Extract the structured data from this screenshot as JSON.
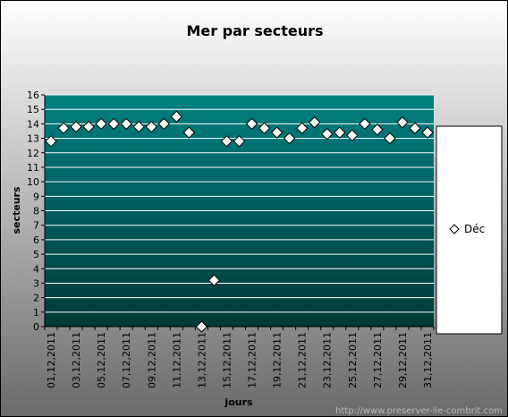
{
  "chart_data": {
    "type": "scatter",
    "title": "Mer par secteurs",
    "xlabel": "jours",
    "ylabel": "secteurs",
    "ylim": [
      0,
      16
    ],
    "yticks": [
      "0",
      "1",
      "2",
      "3",
      "4",
      "5",
      "6",
      "7",
      "8",
      "9",
      "10",
      "11",
      "12",
      "13",
      "14",
      "15",
      "16"
    ],
    "x_tick_labels": [
      "01,12,2011",
      "03,12,2011",
      "05,12,2011",
      "07,12,2011",
      "09,12,2011",
      "11,12,2011",
      "13,12,2011",
      "15,12,2011",
      "17,12,2011",
      "19,12,2011",
      "21,12,2011",
      "23,12,2011",
      "25,12,2011",
      "27,12,2011",
      "29,12,2011",
      "31,12,2011"
    ],
    "categories": [
      "01,12,2011",
      "02,12,2011",
      "03,12,2011",
      "04,12,2011",
      "05,12,2011",
      "06,12,2011",
      "07,12,2011",
      "08,12,2011",
      "09,12,2011",
      "10,12,2011",
      "11,12,2011",
      "12,12,2011",
      "13,12,2011",
      "14,12,2011",
      "15,12,2011",
      "16,12,2011",
      "17,12,2011",
      "18,12,2011",
      "19,12,2011",
      "20,12,2011",
      "21,12,2011",
      "22,12,2011",
      "23,12,2011",
      "24,12,2011",
      "25,12,2011",
      "26,12,2011",
      "27,12,2011",
      "28,12,2011",
      "29,12,2011",
      "30,12,2011",
      "31,12,2011"
    ],
    "series": [
      {
        "name": "Déc",
        "values": [
          12.8,
          13.7,
          13.8,
          13.8,
          14.0,
          14.0,
          14.0,
          13.8,
          13.8,
          14.0,
          14.5,
          13.4,
          0.0,
          3.2,
          12.8,
          12.8,
          14.0,
          13.7,
          13.4,
          13.0,
          13.7,
          14.1,
          13.3,
          13.4,
          13.2,
          14.0,
          13.6,
          13.0,
          14.1,
          13.7,
          13.4
        ]
      }
    ],
    "grid": true,
    "legend_position": "right"
  },
  "watermark": "http://www.preserver-ile-combrit.com"
}
